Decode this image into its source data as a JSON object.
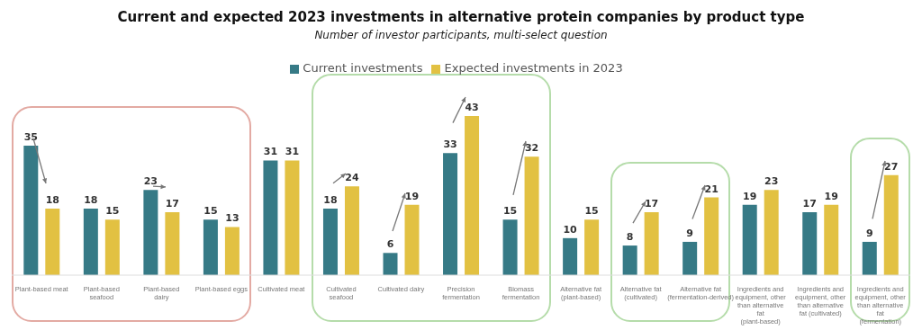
{
  "chart_data": {
    "type": "bar",
    "title": "Current and expected 2023 investments in alternative protein companies by product type",
    "subtitle": "Number of investor participants, multi-select question",
    "categories": [
      "Plant-based meat",
      "Plant-based seafood",
      "Plant-based dairy",
      "Plant-based eggs",
      "Cultivated meat",
      "Cultivated seafood",
      "Cultivated dairy",
      "Precision fermentation",
      "Biomass fermentation",
      "Alternative fat (plant-based)",
      "Alternative fat (cultivated)",
      "Alternative fat (fermentation-derived)",
      "Ingredients and equipment, other than alternative fat (plant-based)",
      "Ingredients and equipment, other than alternative fat (cultivated)",
      "Ingredients and equipment, other than alternative fat (fermentation)"
    ],
    "series": [
      {
        "name": "Current investments",
        "color": "#367a86",
        "values": [
          35,
          18,
          23,
          15,
          31,
          18,
          6,
          33,
          15,
          10,
          8,
          9,
          19,
          17,
          9
        ]
      },
      {
        "name": "Expected investments in 2023",
        "color": "#e2c142",
        "values": [
          18,
          15,
          17,
          13,
          31,
          24,
          19,
          43,
          32,
          15,
          17,
          21,
          23,
          19,
          27
        ]
      }
    ],
    "data_labels": true,
    "legend": "top",
    "grid": false
  }
}
